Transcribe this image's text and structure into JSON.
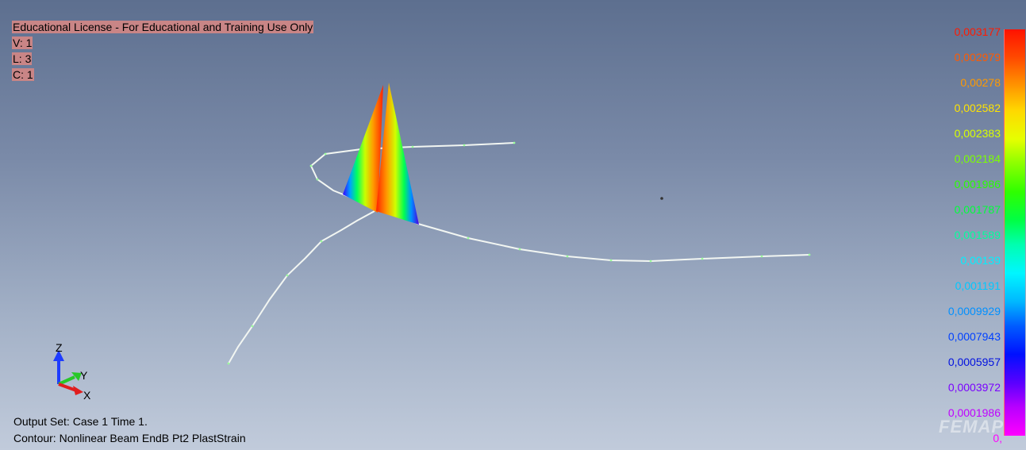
{
  "viewport": {
    "license_text": "Educational License - For Educational and Training Use Only",
    "view_line": "V: 1",
    "layer_line": "L: 3",
    "color_line": "C: 1",
    "output_set": "Output Set: Case 1 Time 1.",
    "contour": "Contour: Nonlinear Beam EndB Pt2 PlastStrain",
    "watermark": "FEMAP"
  },
  "axes": {
    "z": "Z",
    "y": "Y",
    "x": "X"
  },
  "legend": {
    "values": [
      {
        "label": "0,003177",
        "color": "#ff1a00"
      },
      {
        "label": "0,002979",
        "color": "#ff5a00"
      },
      {
        "label": "0,00278",
        "color": "#ff9a00"
      },
      {
        "label": "0,002582",
        "color": "#ffe400"
      },
      {
        "label": "0,002383",
        "color": "#d8ff00"
      },
      {
        "label": "0,002184",
        "color": "#7cff00"
      },
      {
        "label": "0,001986",
        "color": "#28ff00"
      },
      {
        "label": "0,001787",
        "color": "#00ff3a"
      },
      {
        "label": "0,001589",
        "color": "#00ff9a"
      },
      {
        "label": "0,00139",
        "color": "#00f0ff"
      },
      {
        "label": "0,001191",
        "color": "#00c8ff"
      },
      {
        "label": "0,0009929",
        "color": "#0090ff"
      },
      {
        "label": "0,0007943",
        "color": "#0040ff"
      },
      {
        "label": "0,0005957",
        "color": "#0010e0"
      },
      {
        "label": "0,0003972",
        "color": "#7a00ff"
      },
      {
        "label": "0,0001986",
        "color": "#c000ff"
      },
      {
        "label": "0,",
        "color": "#ff00ff"
      }
    ]
  }
}
